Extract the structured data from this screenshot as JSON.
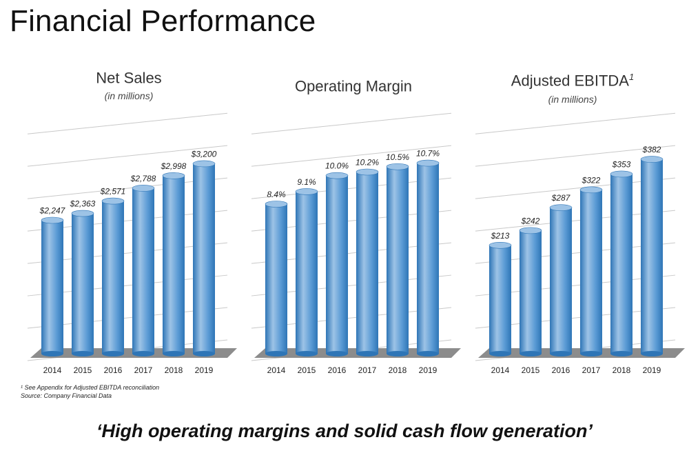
{
  "page": {
    "title": "Financial Performance",
    "footnote1": "¹ See Appendix for Adjusted EBITDA reconciliation",
    "footnote2": "Source: Company Financial Data",
    "tagline": "‘High operating margins and solid cash flow generation’"
  },
  "colors": {
    "bar": "#5b9bd5",
    "bar_dark": "#2e75b6",
    "bar_light": "#9dc3e6",
    "floor": "#8c8c8c",
    "grid": "#c8c8c8"
  },
  "chart_data": [
    {
      "type": "bar",
      "title": "Net Sales",
      "title_sup": "",
      "subtitle": "(in millions)",
      "categories": [
        "2014",
        "2015",
        "2016",
        "2017",
        "2018",
        "2019"
      ],
      "values": [
        2247,
        2363,
        2571,
        2788,
        2998,
        3200
      ],
      "labels": [
        "$2,247",
        "$2,363",
        "$2,571",
        "$2,788",
        "$2,998",
        "$3,200"
      ],
      "ylim": [
        0,
        3600
      ],
      "grid": true
    },
    {
      "type": "bar",
      "title": "Operating Margin",
      "title_sup": "",
      "subtitle": "",
      "categories": [
        "2014",
        "2015",
        "2016",
        "2017",
        "2018",
        "2019"
      ],
      "values": [
        8.4,
        9.1,
        10.0,
        10.2,
        10.5,
        10.7
      ],
      "labels": [
        "8.4%",
        "9.1%",
        "10.0%",
        "10.2%",
        "10.5%",
        "10.7%"
      ],
      "ylim": [
        0,
        12
      ],
      "grid": true
    },
    {
      "type": "bar",
      "title": "Adjusted EBITDA",
      "title_sup": "1",
      "subtitle": "(in millions)",
      "categories": [
        "2014",
        "2015",
        "2016",
        "2017",
        "2018",
        "2019"
      ],
      "values": [
        213,
        242,
        287,
        322,
        353,
        382
      ],
      "labels": [
        "$213",
        "$242",
        "$287",
        "$322",
        "$353",
        "$382"
      ],
      "ylim": [
        0,
        420
      ],
      "grid": true
    }
  ]
}
